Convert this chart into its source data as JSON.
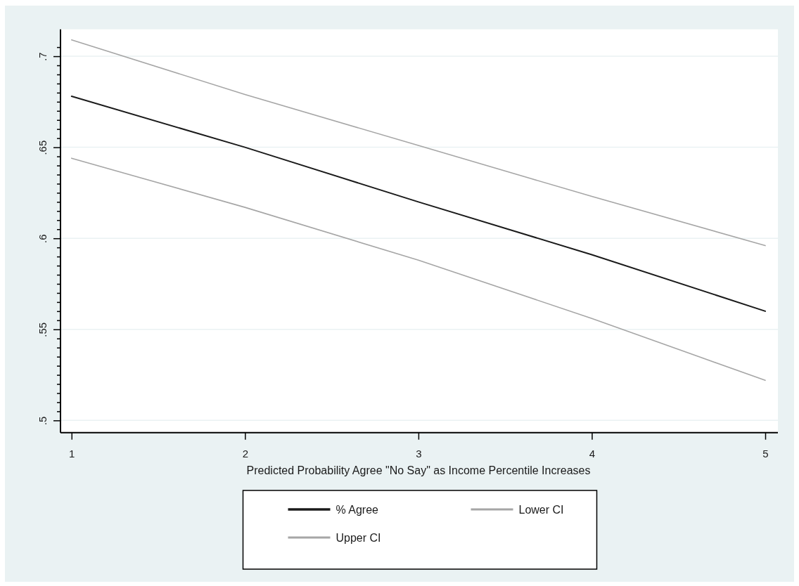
{
  "chart_data": {
    "type": "line",
    "xlabel": "Predicted Probability Agree \"No Say\" as Income Percentile Increases",
    "x": [
      1,
      2,
      3,
      4,
      5
    ],
    "series": [
      {
        "name": "% Agree",
        "color": "#1a1a1a",
        "values": [
          0.678,
          0.65,
          0.62,
          0.591,
          0.56
        ]
      },
      {
        "name": "Lower CI",
        "color": "#a6a6a6",
        "values": [
          0.644,
          0.617,
          0.588,
          0.556,
          0.522
        ]
      },
      {
        "name": "Upper CI",
        "color": "#a6a6a6",
        "values": [
          0.709,
          0.679,
          0.651,
          0.623,
          0.596
        ]
      }
    ],
    "xlim": [
      0.936,
      5.073
    ],
    "xticks": [
      1,
      2,
      3,
      4,
      5
    ],
    "ylim": [
      0.4933,
      0.7148
    ],
    "yticks": [
      {
        "value": 0.5,
        "label": ".5"
      },
      {
        "value": 0.505,
        "label": null
      },
      {
        "value": 0.51,
        "label": null
      },
      {
        "value": 0.515,
        "label": null
      },
      {
        "value": 0.52,
        "label": null
      },
      {
        "value": 0.525,
        "label": null
      },
      {
        "value": 0.53,
        "label": null
      },
      {
        "value": 0.535,
        "label": null
      },
      {
        "value": 0.54,
        "label": null
      },
      {
        "value": 0.545,
        "label": null
      },
      {
        "value": 0.55,
        "label": ".55"
      },
      {
        "value": 0.555,
        "label": null
      },
      {
        "value": 0.56,
        "label": null
      },
      {
        "value": 0.565,
        "label": null
      },
      {
        "value": 0.57,
        "label": null
      },
      {
        "value": 0.575,
        "label": null
      },
      {
        "value": 0.58,
        "label": null
      },
      {
        "value": 0.585,
        "label": null
      },
      {
        "value": 0.59,
        "label": null
      },
      {
        "value": 0.595,
        "label": null
      },
      {
        "value": 0.6,
        "label": ".6"
      },
      {
        "value": 0.605,
        "label": null
      },
      {
        "value": 0.61,
        "label": null
      },
      {
        "value": 0.615,
        "label": null
      },
      {
        "value": 0.62,
        "label": null
      },
      {
        "value": 0.625,
        "label": null
      },
      {
        "value": 0.63,
        "label": null
      },
      {
        "value": 0.635,
        "label": null
      },
      {
        "value": 0.64,
        "label": null
      },
      {
        "value": 0.645,
        "label": null
      },
      {
        "value": 0.65,
        "label": ".65"
      },
      {
        "value": 0.655,
        "label": null
      },
      {
        "value": 0.66,
        "label": null
      },
      {
        "value": 0.665,
        "label": null
      },
      {
        "value": 0.67,
        "label": null
      },
      {
        "value": 0.675,
        "label": null
      },
      {
        "value": 0.68,
        "label": null
      },
      {
        "value": 0.685,
        "label": null
      },
      {
        "value": 0.69,
        "label": null
      },
      {
        "value": 0.695,
        "label": null
      },
      {
        "value": 0.7,
        "label": ".7"
      },
      {
        "value": 0.705,
        "label": null
      }
    ],
    "grid": "y",
    "legend": "bottom",
    "marker": "none",
    "line_style": "solid"
  }
}
